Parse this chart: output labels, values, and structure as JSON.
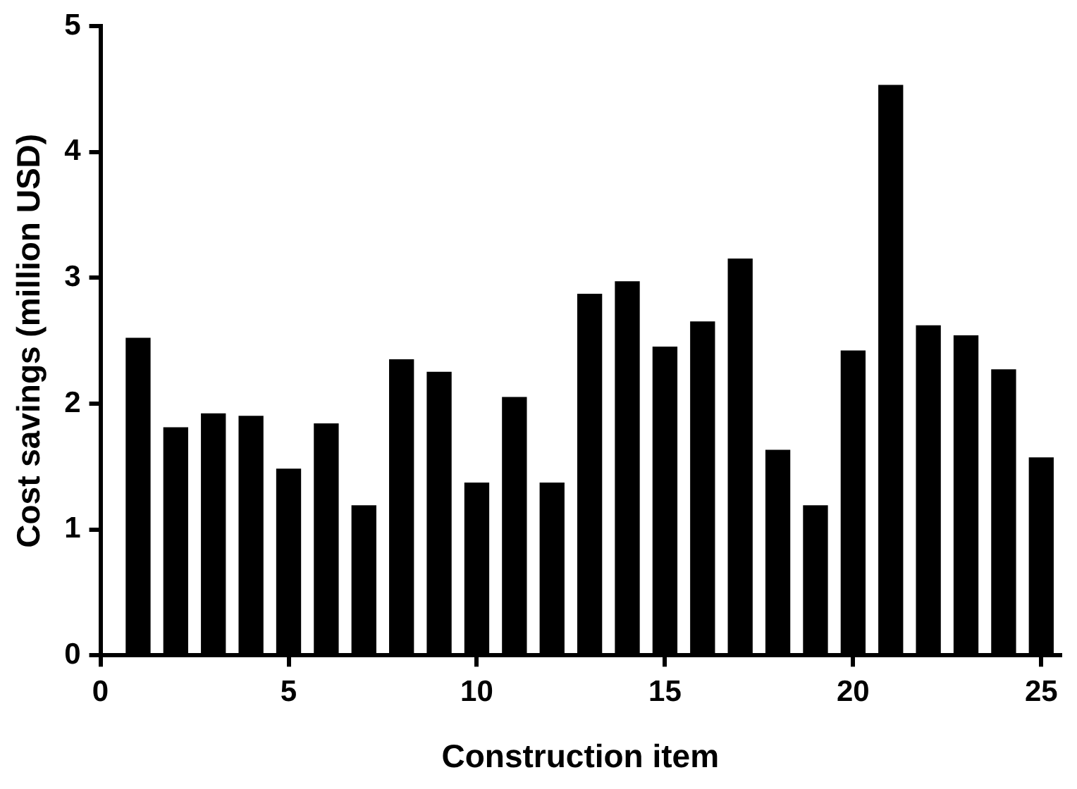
{
  "chart_data": {
    "type": "bar",
    "xlabel": "Construction item",
    "ylabel": "Cost savings (million USD)",
    "x": [
      1,
      2,
      3,
      4,
      5,
      6,
      7,
      8,
      9,
      10,
      11,
      12,
      13,
      14,
      15,
      16,
      17,
      18,
      19,
      20,
      21,
      22,
      23,
      24,
      25
    ],
    "values": [
      2.52,
      1.81,
      1.92,
      1.9,
      1.48,
      1.84,
      1.19,
      2.35,
      2.25,
      1.37,
      2.05,
      1.37,
      2.87,
      2.97,
      2.45,
      2.65,
      3.15,
      1.63,
      1.19,
      2.42,
      4.53,
      2.62,
      2.54,
      2.27,
      1.57
    ],
    "color": "#000000",
    "xlim": [
      0,
      25.5
    ],
    "xticks": [
      0,
      5,
      10,
      15,
      20,
      25
    ],
    "ylim": [
      0,
      5
    ],
    "yticks": [
      0,
      1,
      2,
      3,
      4,
      5
    ],
    "grid": false,
    "legend": false
  }
}
